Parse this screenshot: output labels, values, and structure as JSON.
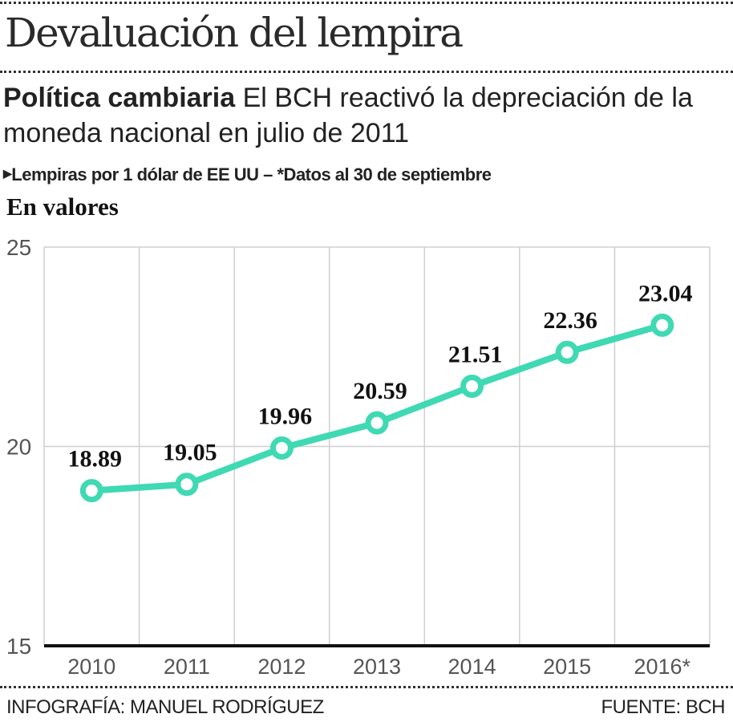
{
  "header": {
    "title": "Devaluación del lempira",
    "subtitle_bold": "Política cambiaria",
    "subtitle_rest": " El BCH reactivó la depreciación de la moneda nacional en julio de 2011",
    "note": "Lempiras por 1 dólar de EE UU – *Datos al 30 de septiembre",
    "section": "En valores"
  },
  "footer": {
    "credit": "INFOGRAFÍA: MANUEL RODRÍGUEZ",
    "source": "FUENTE: BCH"
  },
  "chart_data": {
    "type": "line",
    "categories": [
      "2010",
      "2011",
      "2012",
      "2013",
      "2014",
      "2015",
      "2016*"
    ],
    "values": [
      18.89,
      19.05,
      19.96,
      20.59,
      21.51,
      22.36,
      23.04
    ],
    "data_labels": [
      "18.89",
      "19.05",
      "19.96",
      "20.59",
      "21.51",
      "22.36",
      "23.04"
    ],
    "ylim": [
      15,
      25
    ],
    "yticks": [
      "15",
      "20",
      "25"
    ],
    "grid": true,
    "line_color": "#3fd9b3"
  }
}
